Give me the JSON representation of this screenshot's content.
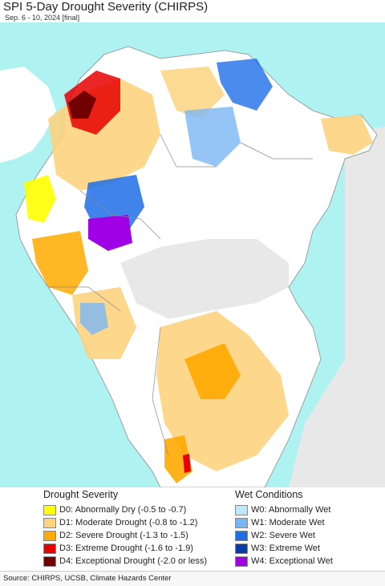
{
  "header": {
    "title": "SPI 5-Day Drought Severity (CHIRPS)",
    "subtitle": "Sep. 6 - 10, 2024 [final]"
  },
  "colors": {
    "ocean": "#aef2f2",
    "land_outside": "#e8e8e8",
    "land_normal": "#ffffff",
    "borders": "#8a8a8a"
  },
  "legend": {
    "drought": {
      "heading": "Drought Severity",
      "items": [
        {
          "label": "D0: Abnormally Dry (-0.5 to -0.7)",
          "color": "#ffff00"
        },
        {
          "label": "D1: Moderate Drought (-0.8 to -1.2)",
          "color": "#fcd37f"
        },
        {
          "label": "D2: Severe Drought (-1.3 to -1.5)",
          "color": "#ffaa00"
        },
        {
          "label": "D3: Extreme Drought (-1.6 to -1.9)",
          "color": "#e60000"
        },
        {
          "label": "D4: Exceptional Drought (-2.0 or less)",
          "color": "#730000"
        }
      ]
    },
    "wet": {
      "heading": "Wet Conditions",
      "items": [
        {
          "label": "W0: Abnormally Wet",
          "color": "#bfe8ff"
        },
        {
          "label": "W1: Moderate Wet",
          "color": "#7ab6f5"
        },
        {
          "label": "W2: Severe Wet",
          "color": "#1e6ee8"
        },
        {
          "label": "W3: Extreme Wet",
          "color": "#0b3ba8"
        },
        {
          "label": "W4: Exceptional Wet",
          "color": "#a000e6"
        }
      ]
    }
  },
  "footer": {
    "source": "Source: CHIRPS, UCSB, Climate Hazards Center"
  }
}
